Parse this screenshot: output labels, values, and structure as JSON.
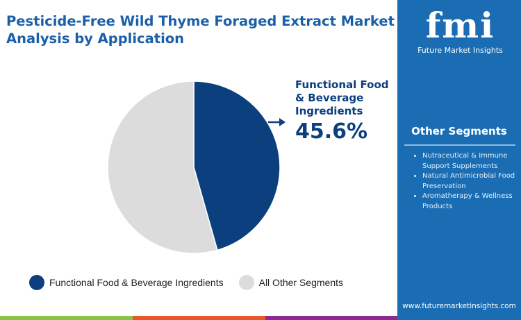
{
  "title": "Pesticide-Free Wild Thyme Foraged Extract Market Analysis by Application",
  "chart_data": {
    "type": "pie",
    "slices": [
      {
        "name": "Functional Food & Beverage Ingredients",
        "value": 45.6,
        "color": "#0b3f7e"
      },
      {
        "name": "All Other Segments",
        "value": 54.4,
        "color": "#dcdcdc"
      }
    ],
    "callout": {
      "label": "Functional Food & Beverage Ingredients",
      "value_label": "45.6%"
    },
    "legend": [
      "Functional Food & Beverage Ingredients",
      "All Other Segments"
    ],
    "legend_position": "bottom"
  },
  "callout_lines": [
    "Functional Food",
    "& Beverage",
    "Ingredients"
  ],
  "sidebar": {
    "logo_text": "fmi",
    "logo_subtitle": "Future Market Insights",
    "heading": "Other Segments",
    "items": [
      "Nutraceutical & Immune Support Supplements",
      "Natural Antimicrobial Food Preservation",
      "Aromatherapy & Wellness Products"
    ],
    "url": "www.futuremarketinsights.com"
  },
  "colors": {
    "accent": "#1a5fa8",
    "sidebar": "#1a6db3",
    "bar_green": "#8bc34a",
    "bar_orange": "#e8572a",
    "bar_purple": "#8e2a8e"
  }
}
